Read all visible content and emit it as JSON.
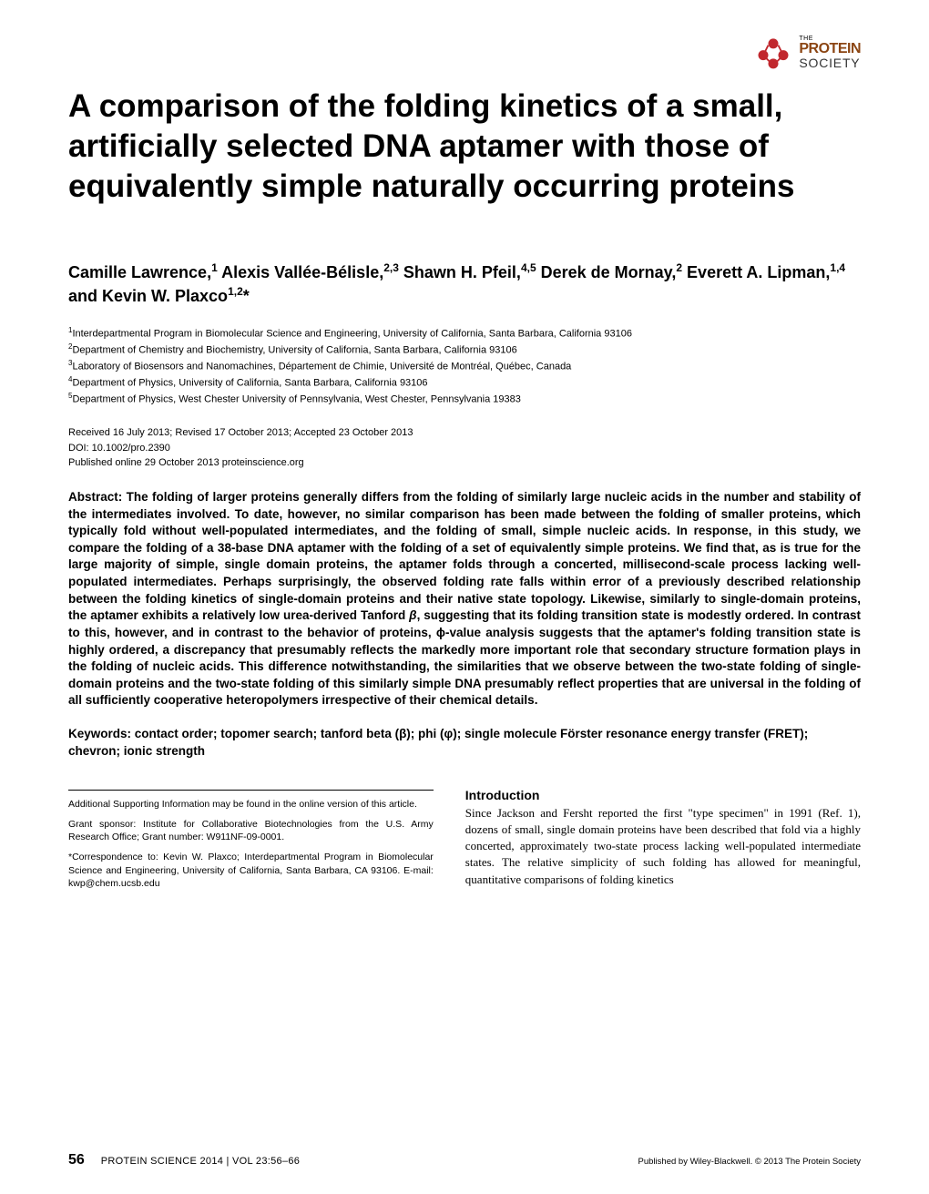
{
  "logo": {
    "the": "THE",
    "protein": "PROTEIN",
    "society": "SOCIETY"
  },
  "title": "A comparison of the folding kinetics of a small, artificially selected DNA aptamer with those of equivalently simple naturally occurring proteins",
  "authors_html": "Camille Lawrence,<sup>1</sup> Alexis Vallée-Bélisle,<sup>2,3</sup> Shawn H. Pfeil,<sup>4,5</sup> Derek de Mornay,<sup>2</sup> Everett A. Lipman,<sup>1,4</sup> and Kevin W. Plaxco<sup>1,2</sup>*",
  "affiliations": [
    {
      "num": "1",
      "text": "Interdepartmental Program in Biomolecular Science and Engineering, University of California, Santa Barbara, California 93106"
    },
    {
      "num": "2",
      "text": "Department of Chemistry and Biochemistry, University of California, Santa Barbara, California 93106"
    },
    {
      "num": "3",
      "text": "Laboratory of Biosensors and Nanomachines, Département de Chimie, Université de Montréal, Québec, Canada"
    },
    {
      "num": "4",
      "text": "Department of Physics, University of California, Santa Barbara, California 93106"
    },
    {
      "num": "5",
      "text": "Department of Physics, West Chester University of Pennsylvania, West Chester, Pennsylvania 19383"
    }
  ],
  "dates": {
    "received": "Received 16 July 2013; Revised 17 October 2013; Accepted 23 October 2013",
    "doi": "DOI: 10.1002/pro.2390",
    "published": "Published online 29 October 2013 proteinscience.org"
  },
  "abstract_label": "Abstract: ",
  "abstract_text": "The folding of larger proteins generally differs from the folding of similarly large nucleic acids in the number and stability of the intermediates involved. To date, however, no similar comparison has been made between the folding of smaller proteins, which typically fold without well-populated intermediates, and the folding of small, simple nucleic acids. In response, in this study, we compare the folding of a 38-base DNA aptamer with the folding of a set of equivalently simple proteins. We find that, as is true for the large majority of simple, single domain proteins, the aptamer folds through a concerted, millisecond-scale process lacking well-populated intermediates. Perhaps surprisingly, the observed folding rate falls within error of a previously described relationship between the folding kinetics of single-domain proteins and their native state topology. Likewise, similarly to single-domain proteins, the aptamer exhibits a relatively low urea-derived Tanford β, suggesting that its folding transition state is modestly ordered. In contrast to this, however, and in contrast to the behavior of proteins, ϕ-value analysis suggests that the aptamer's folding transition state is highly ordered, a discrepancy that presumably reflects the markedly more important role that secondary structure formation plays in the folding of nucleic acids. This difference notwithstanding, the similarities that we observe between the two-state folding of single-domain proteins and the two-state folding of this similarly simple DNA presumably reflect properties that are universal in the folding of all sufficiently cooperative heteropolymers irrespective of their chemical details.",
  "keywords_label": "Keywords: ",
  "keywords_text": "contact order; topomer search; tanford beta (β); phi (φ); single molecule Förster resonance energy transfer (FRET); chevron; ionic strength",
  "supporting_info": "Additional Supporting Information may be found in the online version of this article.",
  "grant": "Grant sponsor: Institute for Collaborative Biotechnologies from the U.S. Army Research Office; Grant number: W911NF-09-0001.",
  "correspondence": "*Correspondence to: Kevin W. Plaxco; Interdepartmental Program in Biomolecular Science and Engineering, University of California, Santa Barbara, CA 93106. E-mail: kwp@chem.ucsb.edu",
  "intro_heading": "Introduction",
  "intro_text": "Since Jackson and Fersht reported the first \"type specimen\" in 1991 (Ref. 1), dozens of small, single domain proteins have been described that fold via a highly concerted, approximately two-state process lacking well-populated intermediate states. The relative simplicity of such folding has allowed for meaningful, quantitative comparisons of folding kinetics",
  "footer": {
    "page": "56",
    "journal": "PROTEIN SCIENCE 2014 | VOL 23:56–66",
    "publisher": "Published by Wiley-Blackwell. © 2013 The Protein Society"
  },
  "colors": {
    "logo_brown": "#8B4513",
    "logo_red": "#c1272d",
    "text": "#000000",
    "background": "#ffffff"
  },
  "typography": {
    "title_fontsize": 35,
    "title_weight": "bold",
    "authors_fontsize": 18,
    "affiliation_fontsize": 11,
    "abstract_fontsize": 13.5,
    "intro_fontsize": 13,
    "footer_fontsize": 10
  }
}
